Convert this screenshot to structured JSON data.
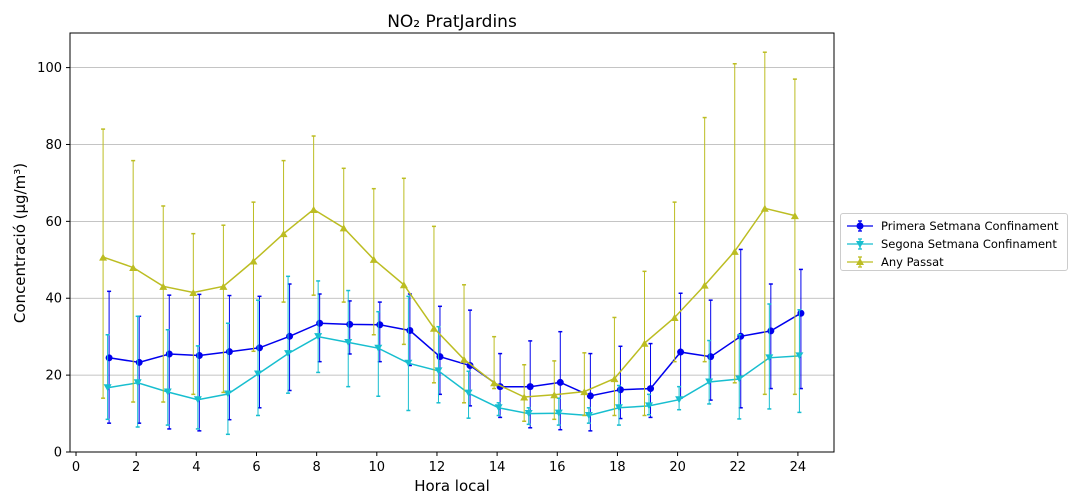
{
  "chart_data": {
    "type": "line",
    "title": "NO₂ PratJardins",
    "xlabel": "Hora local",
    "ylabel": "Concentració (µg/m³)",
    "xlim": [
      -0.2,
      25.2
    ],
    "ylim": [
      0,
      109
    ],
    "xticks": [
      "0",
      "2",
      "4",
      "6",
      "8",
      "10",
      "12",
      "14",
      "16",
      "18",
      "20",
      "22",
      "24"
    ],
    "yticks": [
      "0",
      "20",
      "40",
      "60",
      "80",
      "100"
    ],
    "grid": "horizontal",
    "legend_position": "right",
    "x": [
      1,
      2,
      3,
      4,
      5,
      6,
      7,
      8,
      9,
      10,
      11,
      12,
      13,
      14,
      15,
      16,
      17,
      18,
      19,
      20,
      21,
      22,
      23,
      24
    ],
    "series": [
      {
        "name": "Primera Setmana Confinament",
        "color": "#0000ee",
        "marker": "circle",
        "x_offset": 0.1,
        "values": [
          24.5,
          23.3,
          25.5,
          25.1,
          26.1,
          27.1,
          30.1,
          33.5,
          33.2,
          33.1,
          31.6,
          24.8,
          22.5,
          17.0,
          17.0,
          18.1,
          14.6,
          16.2,
          16.5,
          26.0,
          24.8,
          30.1,
          31.5,
          36.1
        ],
        "err_low": [
          7.5,
          7.5,
          6.0,
          5.5,
          8.4,
          11.5,
          16.0,
          23.5,
          25.5,
          23.5,
          22.5,
          15.0,
          12.0,
          9.0,
          6.3,
          5.8,
          5.5,
          8.7,
          9.0,
          14.0,
          13.5,
          11.5,
          16.5,
          16.5
        ],
        "err_high": [
          41.8,
          35.3,
          40.8,
          41.0,
          40.7,
          40.5,
          43.7,
          41.1,
          39.3,
          39.0,
          41.1,
          37.9,
          36.9,
          25.6,
          28.9,
          31.3,
          25.6,
          27.5,
          28.2,
          41.3,
          39.5,
          52.7,
          43.7,
          47.5
        ]
      },
      {
        "name": "Segona Setmana Confinament",
        "color": "#17becf",
        "marker": "triangle-down",
        "x_offset": 0.05,
        "values": [
          16.7,
          18.0,
          15.6,
          13.6,
          15.1,
          20.3,
          25.6,
          30.0,
          28.5,
          27.0,
          23.1,
          21.1,
          15.3,
          11.5,
          10.0,
          10.1,
          9.5,
          11.5,
          12.0,
          13.6,
          18.2,
          19.0,
          24.5,
          25.0
        ],
        "err_low": [
          8.5,
          6.5,
          7.0,
          6.0,
          4.6,
          9.5,
          15.3,
          20.7,
          17.0,
          14.5,
          10.8,
          12.8,
          8.8,
          9.5,
          7.2,
          7.0,
          7.5,
          7.0,
          9.7,
          11.0,
          12.5,
          8.6,
          11.2,
          10.3
        ],
        "err_high": [
          30.5,
          35.3,
          31.8,
          27.6,
          33.5,
          39.5,
          45.7,
          44.5,
          42.0,
          36.5,
          40.5,
          32.6,
          21.0,
          12.8,
          11.5,
          14.0,
          11.5,
          17.3,
          15.0,
          17.0,
          29.0,
          30.5,
          38.5,
          37.0
        ]
      },
      {
        "name": "Any Passat",
        "color": "#bcbd22",
        "marker": "triangle-up",
        "x_offset": -0.1,
        "values": [
          50.7,
          48.0,
          43.1,
          41.5,
          43.1,
          49.7,
          56.8,
          63.1,
          58.3,
          50.1,
          43.5,
          32.2,
          24.1,
          18.0,
          14.3,
          14.9,
          15.7,
          19.1,
          28.3,
          35.0,
          43.4,
          52.2,
          63.4,
          61.5
        ],
        "err_low": [
          14.0,
          13.0,
          13.0,
          15.0,
          15.5,
          26.2,
          39.0,
          40.8,
          39.0,
          30.5,
          28.0,
          18.0,
          12.8,
          16.5,
          8.0,
          8.5,
          9.5,
          9.5,
          9.5,
          23.5,
          23.5,
          18.0,
          15.0,
          15.0
        ],
        "err_high": [
          84.0,
          75.8,
          64.0,
          56.8,
          59.0,
          65.0,
          75.8,
          82.2,
          73.8,
          68.5,
          71.2,
          58.7,
          43.5,
          30.0,
          22.7,
          23.7,
          25.8,
          35.0,
          47.0,
          65.0,
          87.0,
          101.0,
          104.0,
          97.0
        ]
      }
    ]
  }
}
